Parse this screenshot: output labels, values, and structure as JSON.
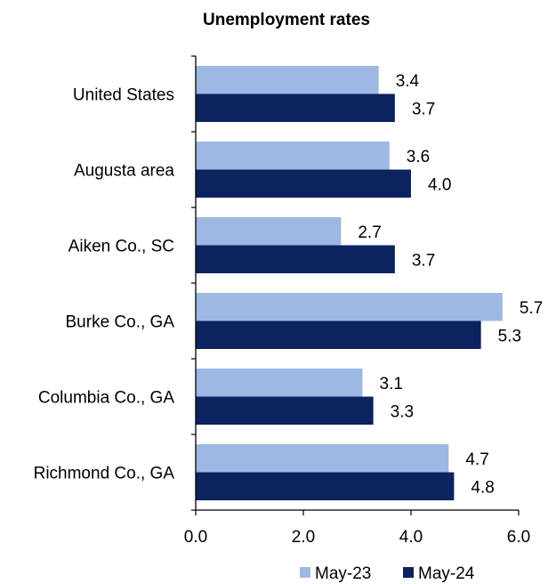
{
  "chart_data": {
    "type": "bar",
    "orientation": "horizontal",
    "title": "Unemployment rates",
    "categories": [
      "United States",
      "Augusta area",
      "Aiken Co., SC",
      "Burke Co., GA",
      "Columbia Co., GA",
      "Richmond Co., GA"
    ],
    "series": [
      {
        "name": "May-23",
        "color": "#9db8e3",
        "values": [
          3.4,
          3.6,
          2.7,
          5.7,
          3.1,
          4.7
        ],
        "labels": [
          "3.4",
          "3.6",
          "2.7",
          "5.7",
          "3.1",
          "4.7"
        ]
      },
      {
        "name": "May-24",
        "color": "#0c2360",
        "values": [
          3.7,
          4.0,
          3.7,
          5.3,
          3.3,
          4.8
        ],
        "labels": [
          "3.7",
          "4.0",
          "3.7",
          "5.3",
          "3.3",
          "4.8"
        ]
      }
    ],
    "xlim": [
      0,
      6
    ],
    "xticks": [
      "0.0",
      "2.0",
      "4.0",
      "6.0"
    ],
    "xlabel": "",
    "ylabel": "",
    "grid": false,
    "legend_position": "bottom"
  }
}
